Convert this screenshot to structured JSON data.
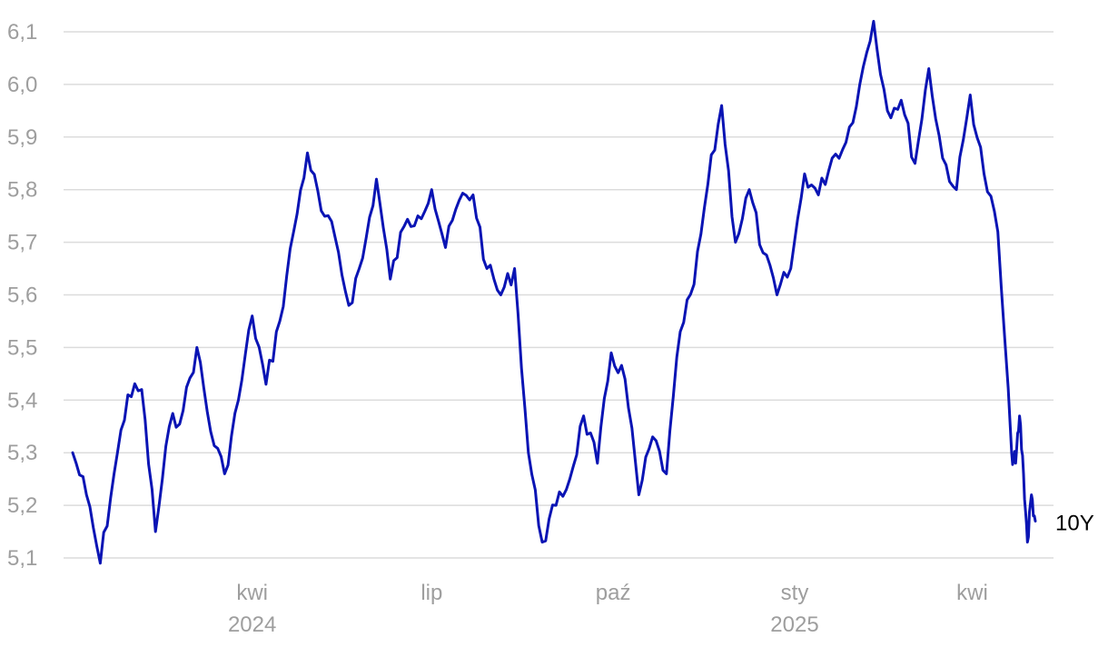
{
  "chart_data": {
    "type": "line",
    "title": "",
    "xlabel": "",
    "ylabel": "",
    "ylim": [
      5.1,
      6.1
    ],
    "y_ticks": [
      "5,1",
      "5,2",
      "5,3",
      "5,4",
      "5,5",
      "5,6",
      "5,7",
      "5,8",
      "5,9",
      "6,0",
      "6,1"
    ],
    "y_tick_values": [
      5.1,
      5.2,
      5.3,
      5.4,
      5.5,
      5.6,
      5.7,
      5.8,
      5.9,
      6.0,
      6.1
    ],
    "x_ticks": [
      {
        "month": "kwi",
        "year": "2024",
        "date": "2024-04-01"
      },
      {
        "month": "lip",
        "year": "",
        "date": "2024-07-01"
      },
      {
        "month": "paź",
        "year": "",
        "date": "2024-10-01"
      },
      {
        "month": "sty",
        "year": "2025",
        "date": "2025-01-01"
      },
      {
        "month": "kwi",
        "year": "",
        "date": "2025-04-01"
      }
    ],
    "grid": true,
    "series_color": "#0a14b4",
    "series": [
      {
        "name": "10Y",
        "x": [
          "2024-01-01",
          "2024-01-08",
          "2024-01-15",
          "2024-01-22",
          "2024-01-29",
          "2024-02-05",
          "2024-02-12",
          "2024-02-19",
          "2024-02-26",
          "2024-03-04",
          "2024-03-11",
          "2024-03-18",
          "2024-03-25",
          "2024-04-01",
          "2024-04-08",
          "2024-04-15",
          "2024-04-22",
          "2024-04-29",
          "2024-05-06",
          "2024-05-13",
          "2024-05-20",
          "2024-05-27",
          "2024-06-03",
          "2024-06-10",
          "2024-06-17",
          "2024-06-24",
          "2024-07-01",
          "2024-07-08",
          "2024-07-15",
          "2024-07-22",
          "2024-07-29",
          "2024-08-05",
          "2024-08-12",
          "2024-08-19",
          "2024-08-26",
          "2024-09-02",
          "2024-09-09",
          "2024-09-16",
          "2024-09-23",
          "2024-09-30",
          "2024-10-07",
          "2024-10-14",
          "2024-10-21",
          "2024-10-28",
          "2024-11-04",
          "2024-11-11",
          "2024-11-18",
          "2024-11-25",
          "2024-12-02",
          "2024-12-09",
          "2024-12-16",
          "2024-12-23",
          "2024-12-30",
          "2025-01-06",
          "2025-01-13",
          "2025-01-20",
          "2025-01-27",
          "2025-02-03",
          "2025-02-10",
          "2025-02-17",
          "2025-02-24",
          "2025-03-03",
          "2025-03-10",
          "2025-03-17",
          "2025-03-24",
          "2025-03-31",
          "2025-04-07",
          "2025-04-14",
          "2025-04-21"
        ],
        "values": [
          5.3,
          5.22,
          5.09,
          5.26,
          5.41,
          5.42,
          5.15,
          5.35,
          5.38,
          5.5,
          5.34,
          5.26,
          5.4,
          5.56,
          5.43,
          5.55,
          5.72,
          5.87,
          5.76,
          5.71,
          5.58,
          5.67,
          5.82,
          5.63,
          5.73,
          5.75,
          5.8,
          5.69,
          5.78,
          5.79,
          5.65,
          5.6,
          5.65,
          5.3,
          5.13,
          5.2,
          5.25,
          5.37,
          5.28,
          5.49,
          5.44,
          5.22,
          5.33,
          5.26,
          5.53,
          5.62,
          5.81,
          5.96,
          5.7,
          5.8,
          5.68,
          5.6,
          5.65,
          5.83,
          5.79,
          5.86,
          5.89,
          6.0,
          6.12,
          5.95,
          5.97,
          5.85,
          6.03,
          5.86,
          5.8,
          5.98,
          5.83,
          5.72,
          5.3
        ],
        "tail_values": [
          5.28,
          5.37,
          5.26,
          5.13,
          5.22,
          5.17
        ]
      }
    ]
  }
}
